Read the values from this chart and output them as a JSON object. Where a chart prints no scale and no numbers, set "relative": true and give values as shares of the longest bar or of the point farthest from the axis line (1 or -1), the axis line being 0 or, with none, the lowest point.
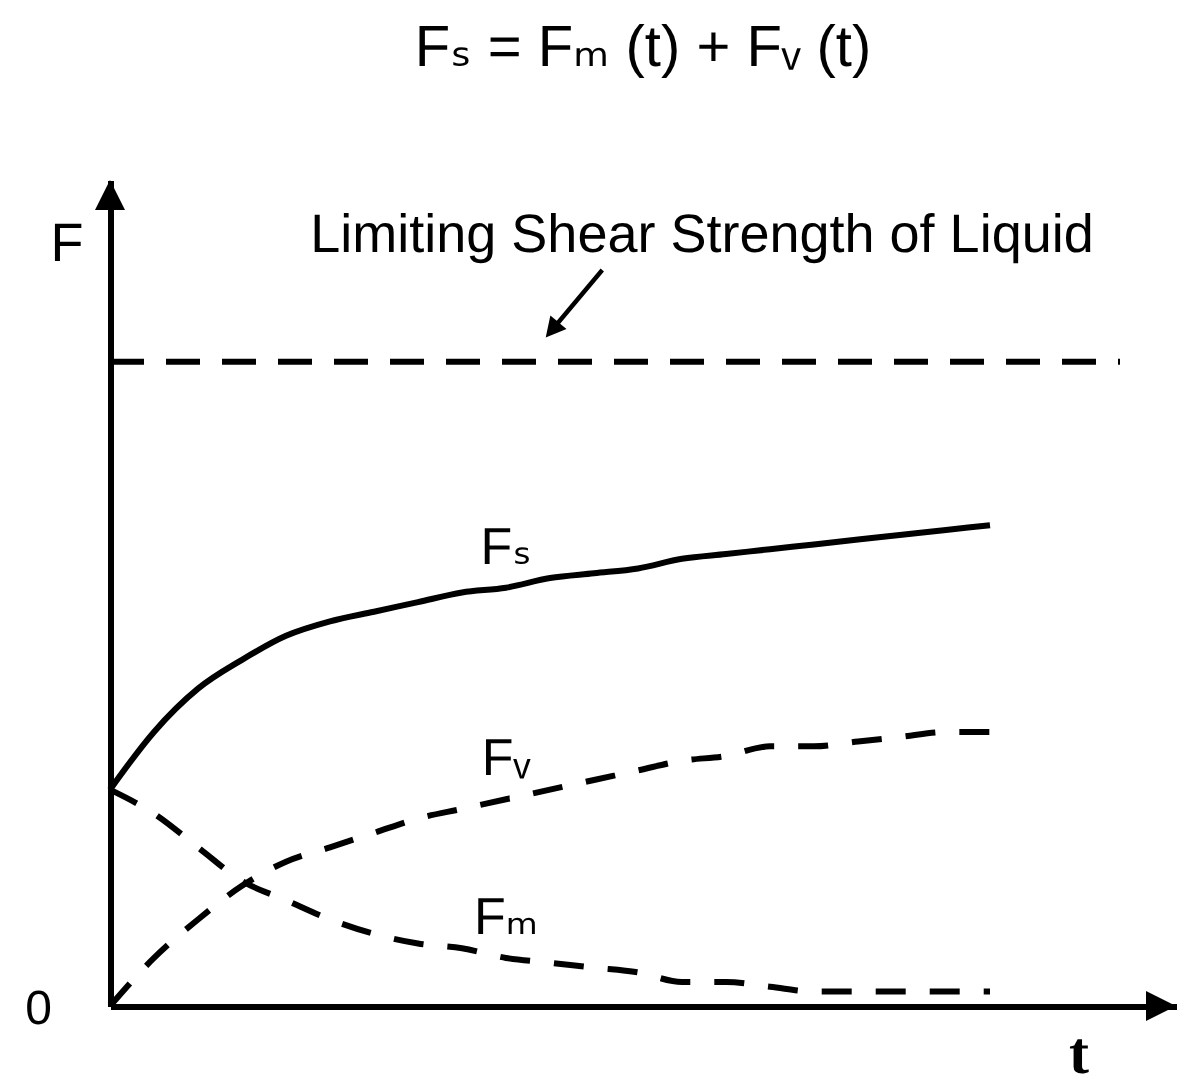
{
  "chart_data": {
    "type": "line",
    "title": "Fₛ = Fₘ (t) + Fᵥ (t)",
    "xlabel": "t",
    "ylabel": "F",
    "relative": true,
    "categories": [
      null,
      null,
      null,
      null,
      null,
      null,
      null,
      null,
      null,
      null,
      null,
      null,
      null,
      null,
      null,
      null,
      null,
      null,
      null,
      null,
      null
    ],
    "series": [
      {
        "name": "Fₛ",
        "color": "#000000",
        "line_style": "solid",
        "values": [
          0.45,
          0.57,
          0.66,
          0.72,
          0.77,
          0.8,
          0.82,
          0.84,
          0.86,
          0.87,
          0.89,
          0.9,
          0.91,
          0.93,
          0.94,
          0.95,
          0.96,
          0.97,
          0.98,
          0.99,
          1
        ]
      },
      {
        "name": "Fᵥ",
        "color": "#000000",
        "line_style": "dashed",
        "values": [
          0,
          0.1,
          0.18,
          0.25,
          0.3,
          0.33,
          0.36,
          0.39,
          0.41,
          0.43,
          0.45,
          0.47,
          0.49,
          0.51,
          0.52,
          0.54,
          0.54,
          0.55,
          0.56,
          0.57,
          0.57
        ]
      },
      {
        "name": "Fₘ",
        "color": "#000000",
        "line_style": "dashed",
        "values": [
          0.45,
          0.4,
          0.33,
          0.26,
          0.22,
          0.18,
          0.15,
          0.13,
          0.12,
          0.1,
          0.09,
          0.08,
          0.07,
          0.05,
          0.05,
          0.04,
          0.03,
          0.03,
          0.03,
          0.03,
          0.03
        ]
      }
    ],
    "ref_lines": [
      {
        "axis": "y",
        "value": 1.34,
        "label": "Limiting Shear Strength of Liquid",
        "color": "#000000",
        "line_style": "dashed"
      }
    ],
    "annotations": [
      "0"
    ]
  }
}
